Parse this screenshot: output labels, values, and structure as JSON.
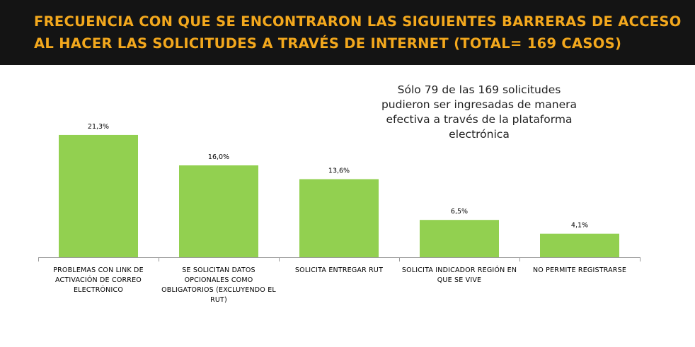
{
  "header": {
    "title_line1": "FRECUENCIA CON QUE SE ENCONTRARON LAS SIGUIENTES BARRERAS DE ACCESO",
    "title_line2": "AL HACER LAS SOLICITUDES A TRAVÉS DE  INTERNET (TOTAL= 169 CASOS)",
    "background_color": "#141414",
    "title_color": "#f3a81d"
  },
  "annotation": {
    "text": "Sólo 79 de las 169 solicitudes pudieron ser ingresadas de manera efectiva a través de la plataforma electrónica"
  },
  "chart_data": {
    "type": "bar",
    "title": "",
    "xlabel": "",
    "ylabel": "",
    "categories": [
      "PROBLEMAS CON LINK DE ACTIVACIÓN DE CORREO ELECTRÓNICO",
      "SE SOLICITAN DATOS OPCIONALES COMO OBLIGATORIOS (EXCLUYENDO EL RUT)",
      "SOLICITA ENTREGAR RUT",
      "SOLICITA INDICADOR REGIÓN EN QUE SE VIVE",
      "NO PERMITE REGISTRARSE"
    ],
    "values": [
      21.3,
      16.0,
      13.6,
      6.5,
      4.1
    ],
    "value_labels": [
      "21,3%",
      "16,0%",
      "13,6%",
      "6,5%",
      "4,1%"
    ],
    "bar_color": "#92d050",
    "grid": false,
    "legend": "none"
  }
}
